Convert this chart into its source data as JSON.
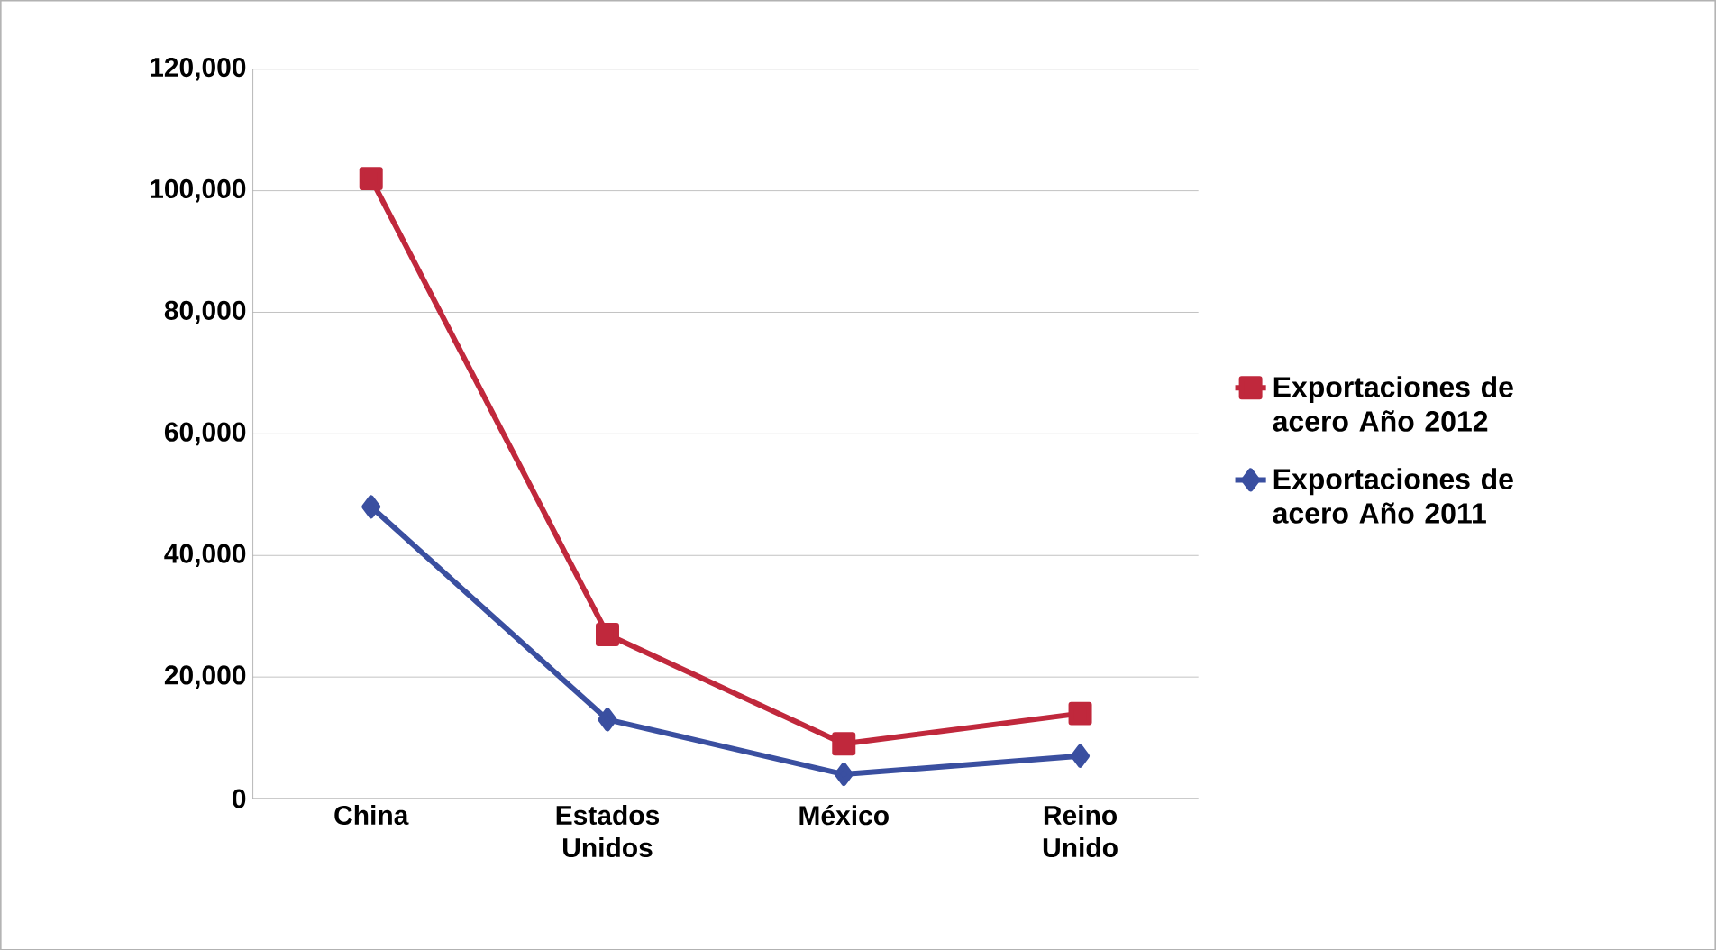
{
  "chart_data": {
    "type": "line",
    "categories": [
      "China",
      "Estados Unidos",
      "México",
      "Reino Unido"
    ],
    "series": [
      {
        "name": "Exportaciones de acero Año 2012",
        "color": "#c0283c",
        "marker": "square",
        "values": [
          102000,
          27000,
          9000,
          14000
        ]
      },
      {
        "name": "Exportaciones de acero Año 2011",
        "color": "#3a4fa0",
        "marker": "diamond",
        "values": [
          48000,
          13000,
          4000,
          7000
        ]
      }
    ],
    "ylim": [
      0,
      120000
    ],
    "yticks": [
      {
        "value": 0,
        "label": "0"
      },
      {
        "value": 20000,
        "label": "20,000"
      },
      {
        "value": 40000,
        "label": "40,000"
      },
      {
        "value": 60000,
        "label": "60,000"
      },
      {
        "value": 80000,
        "label": "80,000"
      },
      {
        "value": 100000,
        "label": "100,000"
      },
      {
        "value": 120000,
        "label": "120,000"
      }
    ],
    "grid": "y",
    "legend": "right"
  }
}
